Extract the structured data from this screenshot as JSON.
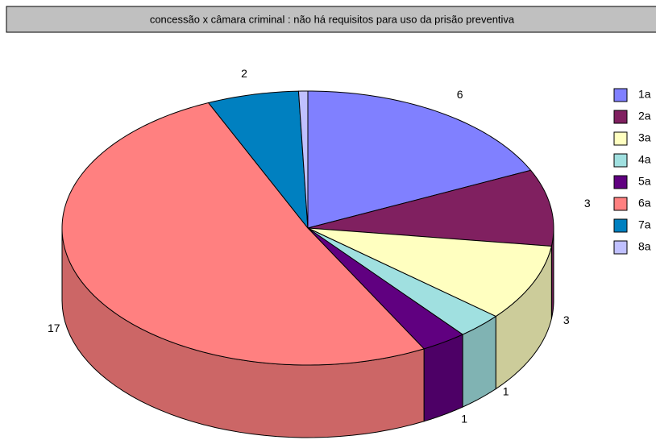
{
  "chart_data": {
    "type": "pie3d",
    "title": "concessão x câmara criminal : não há requisitos para uso da prisão preventiva",
    "categories": [
      "1a",
      "2a",
      "3a",
      "4a",
      "5a",
      "6a",
      "7a",
      "8a"
    ],
    "values": [
      6,
      3,
      3,
      1,
      1,
      17,
      2,
      0.2
    ],
    "value_labels": [
      "6",
      "3",
      "3",
      "1",
      "1",
      "17",
      "2",
      null
    ],
    "colors": [
      "#8080ff",
      "#802060",
      "#ffffc0",
      "#a0e0e0",
      "#600080",
      "#ff8080",
      "#0080c0",
      "#c0c0ff"
    ],
    "legend": "right"
  }
}
